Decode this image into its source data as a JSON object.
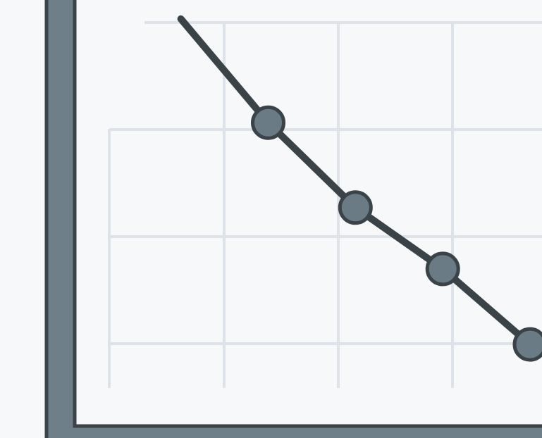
{
  "chart_data": {
    "type": "line",
    "title": "",
    "xlabel": "",
    "ylabel": "",
    "grid": true,
    "x": [
      0,
      1,
      2,
      3,
      4
    ],
    "series": [
      {
        "values": [
          8.6,
          6.4,
          4.6,
          3.3,
          1.7
        ],
        "markers": [
          false,
          true,
          true,
          true,
          true
        ]
      }
    ],
    "xlim": [
      -1.2,
      4.0
    ],
    "ylim": [
      0,
      9
    ]
  },
  "colors": {
    "background": "#f7f8f9",
    "grid": "#dde3e8",
    "axis_dark": "#3a4347",
    "axis_fill": "#6f7f8a",
    "line": "#3a4347",
    "marker_fill": "#6b7b86"
  }
}
